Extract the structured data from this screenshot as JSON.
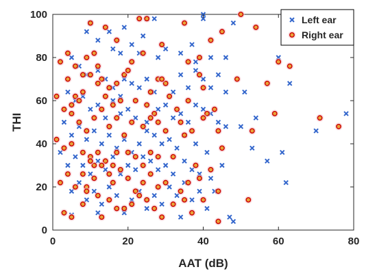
{
  "chart_data": {
    "type": "scatter",
    "title": "",
    "xlabel": "AAT (dB)",
    "ylabel": "THI",
    "xlim": [
      0,
      80
    ],
    "ylim": [
      0,
      100
    ],
    "x_ticks": [
      0,
      20,
      40,
      60,
      80
    ],
    "y_ticks": [
      0,
      20,
      40,
      60,
      80,
      100
    ],
    "x_tick_labels": [
      "0",
      "20",
      "40",
      "60",
      "80"
    ],
    "y_tick_labels": [
      "0",
      "20",
      "40",
      "60",
      "80",
      "100"
    ],
    "grid": false,
    "legend_position": "top-right",
    "series": [
      {
        "name": "Left ear",
        "marker": "x",
        "color": "#3366cc",
        "points": [
          [
            10,
            96
          ],
          [
            15,
            92
          ],
          [
            19,
            94
          ],
          [
            27,
            98
          ],
          [
            25,
            98
          ],
          [
            40,
            100
          ],
          [
            40,
            98
          ],
          [
            48,
            96
          ],
          [
            9,
            92
          ],
          [
            12,
            88
          ],
          [
            16,
            84
          ],
          [
            18,
            82
          ],
          [
            21,
            86
          ],
          [
            23,
            82
          ],
          [
            24,
            90
          ],
          [
            28,
            80
          ],
          [
            30,
            84
          ],
          [
            34,
            82
          ],
          [
            37,
            86
          ],
          [
            38,
            78
          ],
          [
            42,
            80
          ],
          [
            46,
            80
          ],
          [
            60,
            80
          ],
          [
            5,
            80
          ],
          [
            7,
            76
          ],
          [
            9,
            72
          ],
          [
            12,
            74
          ],
          [
            14,
            70
          ],
          [
            16,
            66
          ],
          [
            18,
            62
          ],
          [
            19,
            70
          ],
          [
            21,
            68
          ],
          [
            23,
            66
          ],
          [
            25,
            70
          ],
          [
            27,
            64
          ],
          [
            30,
            68
          ],
          [
            32,
            64
          ],
          [
            34,
            72
          ],
          [
            36,
            66
          ],
          [
            38,
            74
          ],
          [
            40,
            70
          ],
          [
            42,
            66
          ],
          [
            44,
            72
          ],
          [
            46,
            64
          ],
          [
            51,
            64
          ],
          [
            63,
            68
          ],
          [
            4,
            64
          ],
          [
            6,
            60
          ],
          [
            8,
            62
          ],
          [
            10,
            56
          ],
          [
            12,
            58
          ],
          [
            14,
            52
          ],
          [
            16,
            60
          ],
          [
            18,
            54
          ],
          [
            20,
            56
          ],
          [
            22,
            52
          ],
          [
            25,
            50
          ],
          [
            28,
            56
          ],
          [
            30,
            58
          ],
          [
            32,
            52
          ],
          [
            34,
            54
          ],
          [
            36,
            50
          ],
          [
            38,
            58
          ],
          [
            40,
            56
          ],
          [
            42,
            54
          ],
          [
            44,
            50
          ],
          [
            46,
            48
          ],
          [
            50,
            48
          ],
          [
            54,
            52
          ],
          [
            3,
            50
          ],
          [
            5,
            44
          ],
          [
            7,
            48
          ],
          [
            9,
            42
          ],
          [
            11,
            46
          ],
          [
            13,
            40
          ],
          [
            15,
            44
          ],
          [
            17,
            38
          ],
          [
            19,
            42
          ],
          [
            21,
            36
          ],
          [
            23,
            40
          ],
          [
            25,
            46
          ],
          [
            27,
            44
          ],
          [
            29,
            40
          ],
          [
            31,
            42
          ],
          [
            33,
            38
          ],
          [
            35,
            44
          ],
          [
            38,
            40
          ],
          [
            41,
            36
          ],
          [
            53,
            38
          ],
          [
            57,
            32
          ],
          [
            61,
            36
          ],
          [
            70,
            46
          ],
          [
            78,
            54
          ],
          [
            2,
            36
          ],
          [
            4,
            30
          ],
          [
            6,
            34
          ],
          [
            8,
            30
          ],
          [
            10,
            26
          ],
          [
            12,
            32
          ],
          [
            14,
            28
          ],
          [
            16,
            34
          ],
          [
            18,
            26
          ],
          [
            20,
            30
          ],
          [
            22,
            28
          ],
          [
            24,
            34
          ],
          [
            26,
            32
          ],
          [
            28,
            28
          ],
          [
            30,
            30
          ],
          [
            32,
            26
          ],
          [
            35,
            32
          ],
          [
            37,
            28
          ],
          [
            39,
            26
          ],
          [
            42,
            24
          ],
          [
            45,
            30
          ],
          [
            62,
            22
          ],
          [
            5,
            18
          ],
          [
            7,
            22
          ],
          [
            9,
            14
          ],
          [
            11,
            18
          ],
          [
            13,
            12
          ],
          [
            15,
            20
          ],
          [
            17,
            16
          ],
          [
            19,
            10
          ],
          [
            21,
            14
          ],
          [
            23,
            18
          ],
          [
            25,
            10
          ],
          [
            27,
            16
          ],
          [
            29,
            12
          ],
          [
            31,
            20
          ],
          [
            33,
            16
          ],
          [
            35,
            22
          ],
          [
            37,
            14
          ],
          [
            39,
            18
          ],
          [
            41,
            10
          ],
          [
            43,
            18
          ],
          [
            47,
            6
          ],
          [
            48,
            4
          ],
          [
            34,
            6
          ],
          [
            12,
            8
          ],
          [
            19,
            8
          ],
          [
            5,
            7
          ]
        ]
      },
      {
        "name": "Right ear",
        "marker": "o",
        "color": "#cc0000",
        "points": [
          [
            10,
            96
          ],
          [
            14,
            94
          ],
          [
            17,
            88
          ],
          [
            23,
            98
          ],
          [
            25,
            98
          ],
          [
            29,
            86
          ],
          [
            35,
            96
          ],
          [
            45,
            92
          ],
          [
            50,
            100
          ],
          [
            54,
            94
          ],
          [
            39,
            80
          ],
          [
            42,
            88
          ],
          [
            4,
            82
          ],
          [
            6,
            76
          ],
          [
            8,
            72
          ],
          [
            9,
            80
          ],
          [
            11,
            82
          ],
          [
            12,
            76
          ],
          [
            13,
            70
          ],
          [
            15,
            66
          ],
          [
            17,
            68
          ],
          [
            19,
            72
          ],
          [
            21,
            78
          ],
          [
            24,
            82
          ],
          [
            26,
            64
          ],
          [
            28,
            70
          ],
          [
            30,
            68
          ],
          [
            36,
            78
          ],
          [
            40,
            66
          ],
          [
            2,
            78
          ],
          [
            4,
            70
          ],
          [
            5,
            58
          ],
          [
            6,
            62
          ],
          [
            7,
            60
          ],
          [
            8,
            64
          ],
          [
            10,
            72
          ],
          [
            12,
            68
          ],
          [
            14,
            62
          ],
          [
            16,
            58
          ],
          [
            18,
            60
          ],
          [
            20,
            74
          ],
          [
            22,
            60
          ],
          [
            25,
            58
          ],
          [
            27,
            54
          ],
          [
            29,
            70
          ],
          [
            31,
            62
          ],
          [
            33,
            56
          ],
          [
            36,
            60
          ],
          [
            39,
            72
          ],
          [
            41,
            54
          ],
          [
            43,
            56
          ],
          [
            49,
            70
          ],
          [
            57,
            68
          ],
          [
            60,
            78
          ],
          [
            63,
            76
          ],
          [
            1,
            62
          ],
          [
            3,
            56
          ],
          [
            5,
            54
          ],
          [
            7,
            50
          ],
          [
            9,
            46
          ],
          [
            11,
            52
          ],
          [
            13,
            56
          ],
          [
            15,
            48
          ],
          [
            17,
            52
          ],
          [
            19,
            44
          ],
          [
            21,
            50
          ],
          [
            24,
            48
          ],
          [
            26,
            52
          ],
          [
            28,
            50
          ],
          [
            30,
            46
          ],
          [
            34,
            50
          ],
          [
            37,
            46
          ],
          [
            40,
            52
          ],
          [
            44,
            46
          ],
          [
            59,
            54
          ],
          [
            71,
            52
          ],
          [
            76,
            48
          ],
          [
            53,
            46
          ],
          [
            1,
            42
          ],
          [
            3,
            38
          ],
          [
            5,
            40
          ],
          [
            8,
            36
          ],
          [
            10,
            34
          ],
          [
            11,
            30
          ],
          [
            12,
            36
          ],
          [
            14,
            32
          ],
          [
            16,
            30
          ],
          [
            17,
            36
          ],
          [
            20,
            36
          ],
          [
            22,
            34
          ],
          [
            24,
            30
          ],
          [
            26,
            36
          ],
          [
            28,
            34
          ],
          [
            32,
            34
          ],
          [
            35,
            44
          ],
          [
            38,
            30
          ],
          [
            45,
            38
          ],
          [
            2,
            22
          ],
          [
            4,
            26
          ],
          [
            6,
            20
          ],
          [
            8,
            26
          ],
          [
            9,
            20
          ],
          [
            10,
            32
          ],
          [
            11,
            24
          ],
          [
            13,
            30
          ],
          [
            15,
            26
          ],
          [
            16,
            22
          ],
          [
            18,
            28
          ],
          [
            20,
            24
          ],
          [
            22,
            18
          ],
          [
            24,
            22
          ],
          [
            26,
            26
          ],
          [
            28,
            20
          ],
          [
            30,
            22
          ],
          [
            34,
            18
          ],
          [
            36,
            22
          ],
          [
            39,
            24
          ],
          [
            42,
            28
          ],
          [
            44,
            18
          ],
          [
            3,
            8
          ],
          [
            5,
            6
          ],
          [
            8,
            12
          ],
          [
            9,
            18
          ],
          [
            12,
            16
          ],
          [
            13,
            6
          ],
          [
            15,
            14
          ],
          [
            17,
            10
          ],
          [
            19,
            10
          ],
          [
            21,
            12
          ],
          [
            23,
            16
          ],
          [
            25,
            14
          ],
          [
            27,
            10
          ],
          [
            29,
            6
          ],
          [
            32,
            12
          ],
          [
            35,
            14
          ],
          [
            37,
            8
          ],
          [
            40,
            14
          ],
          [
            44,
            4
          ],
          [
            52,
            14
          ]
        ]
      }
    ]
  }
}
